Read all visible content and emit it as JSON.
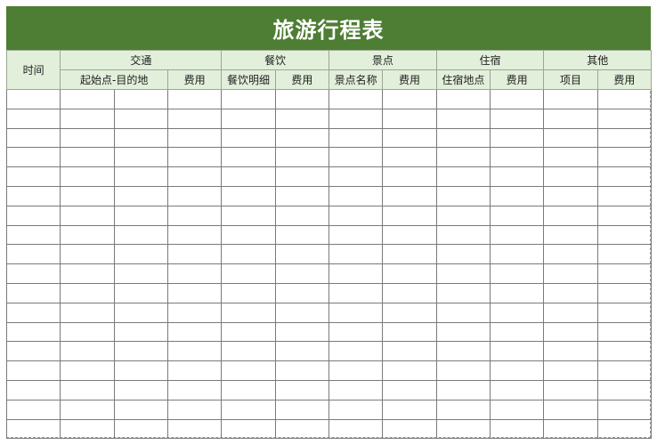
{
  "title": "旅游行程表",
  "header": {
    "time": "时间",
    "groups": [
      "交通",
      "餐饮",
      "景点",
      "住宿",
      "其他"
    ],
    "sub": [
      "起始点-目的地",
      "费用",
      "餐饮明细",
      "费用",
      "景点名称",
      "费用",
      "住宿地点",
      "费用",
      "项目",
      "费用"
    ]
  },
  "rows": 18,
  "colors": {
    "title_bg": "#4e7d34",
    "header_bg": "#e2efda"
  }
}
